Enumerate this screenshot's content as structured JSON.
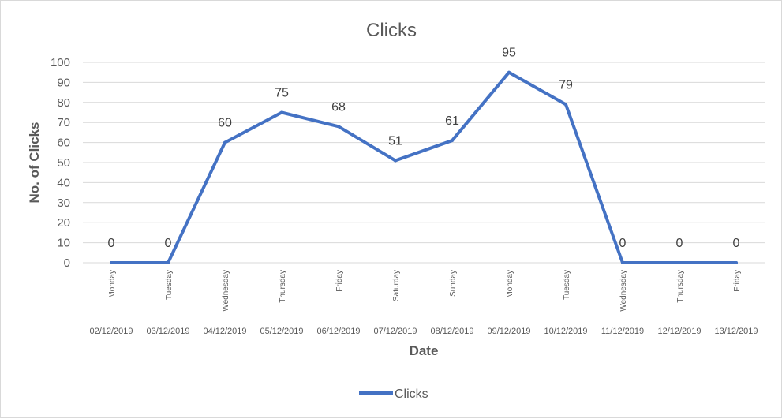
{
  "chart_data": {
    "type": "line",
    "title": "Clicks",
    "xlabel": "Date",
    "ylabel": "No. of Clicks",
    "ylim": [
      0,
      100
    ],
    "ytick_step": 10,
    "grid": true,
    "legend_position": "bottom",
    "categories": [
      {
        "day": "Monday",
        "date": "02/12/2019"
      },
      {
        "day": "Tuesday",
        "date": "03/12/2019"
      },
      {
        "day": "Wednesday",
        "date": "04/12/2019"
      },
      {
        "day": "Thursday",
        "date": "05/12/2019"
      },
      {
        "day": "Friday",
        "date": "06/12/2019"
      },
      {
        "day": "Saturday",
        "date": "07/12/2019"
      },
      {
        "day": "Sunday",
        "date": "08/12/2019"
      },
      {
        "day": "Monday",
        "date": "09/12/2019"
      },
      {
        "day": "Tuesday",
        "date": "10/12/2019"
      },
      {
        "day": "Wednesday",
        "date": "11/12/2019"
      },
      {
        "day": "Thursday",
        "date": "12/12/2019"
      },
      {
        "day": "Friday",
        "date": "13/12/2019"
      }
    ],
    "series": [
      {
        "name": "Clicks",
        "color": "#4472c4",
        "values": [
          0,
          0,
          60,
          75,
          68,
          51,
          61,
          95,
          79,
          0,
          0,
          0
        ]
      }
    ]
  }
}
